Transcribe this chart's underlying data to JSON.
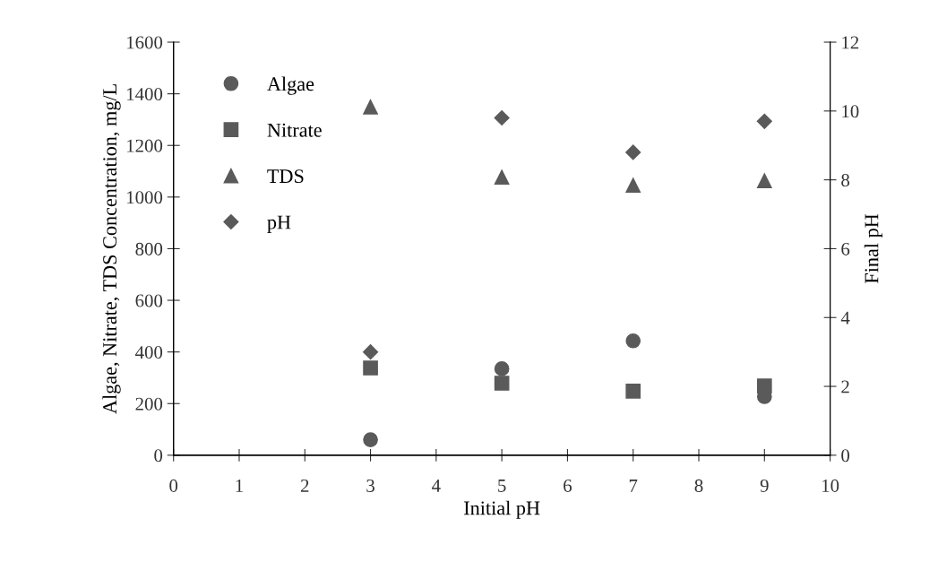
{
  "chart_data": {
    "type": "scatter",
    "xlabel": "Initial pH",
    "ylabel": "Algae, Nitrate, TDS Concentration, mg/L",
    "y2label": "Final pH",
    "xlim": [
      0,
      10
    ],
    "xticks": [
      0,
      1,
      2,
      3,
      4,
      5,
      6,
      7,
      8,
      9,
      10
    ],
    "ylim": [
      0,
      1600
    ],
    "yticks": [
      0,
      200,
      400,
      600,
      800,
      1000,
      1200,
      1400,
      1600
    ],
    "y2lim": [
      0,
      12
    ],
    "y2ticks": [
      0,
      2,
      4,
      6,
      8,
      10,
      12
    ],
    "x": [
      3,
      5,
      7,
      9
    ],
    "legend": "top left",
    "grid": false,
    "series": [
      {
        "name": "Algae",
        "color": "#5a5a5a",
        "marker": "circle",
        "values": [
          60,
          335,
          443,
          227
        ]
      },
      {
        "name": "Nitrate",
        "color": "#5a5a5a",
        "marker": "square",
        "values": [
          338,
          279,
          248,
          268
        ]
      },
      {
        "name": "TDS",
        "color": "#5a5a5a",
        "marker": "triangle",
        "values": [
          1349,
          1077,
          1046,
          1063
        ]
      },
      {
        "name": "pH",
        "color": "#5a5a5a",
        "marker": "diamond",
        "axis": "y2",
        "values": [
          3.0,
          9.8,
          8.8,
          9.7
        ]
      }
    ]
  }
}
